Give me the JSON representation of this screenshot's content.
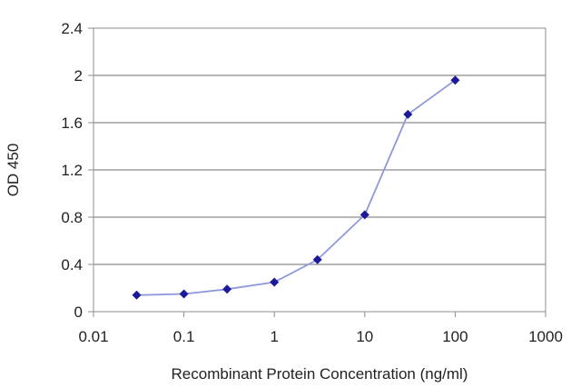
{
  "chart_data": {
    "type": "line",
    "title": "",
    "xlabel": "Recombinant Protein Concentration (ng/ml)",
    "ylabel": "OD 450",
    "x_scale": "log",
    "xlim": [
      0.01,
      1000
    ],
    "ylim": [
      0,
      2.4
    ],
    "x_ticks": [
      "0.01",
      "0.1",
      "1",
      "10",
      "100",
      "1000"
    ],
    "y_ticks": [
      "0",
      "0.4",
      "0.8",
      "1.2",
      "1.6",
      "2",
      "2.4"
    ],
    "grid": "horizontal",
    "legend": "none",
    "series": [
      {
        "x": [
          0.03,
          0.1,
          0.3,
          1,
          3,
          10,
          30,
          100
        ],
        "y": [
          0.14,
          0.15,
          0.19,
          0.25,
          0.44,
          0.82,
          1.67,
          1.96
        ]
      }
    ],
    "colors": {
      "line": "#8f97dd",
      "marker": "#1a1a9a",
      "grid": "#8c8c8c",
      "frame": "#8c8c8c"
    }
  }
}
